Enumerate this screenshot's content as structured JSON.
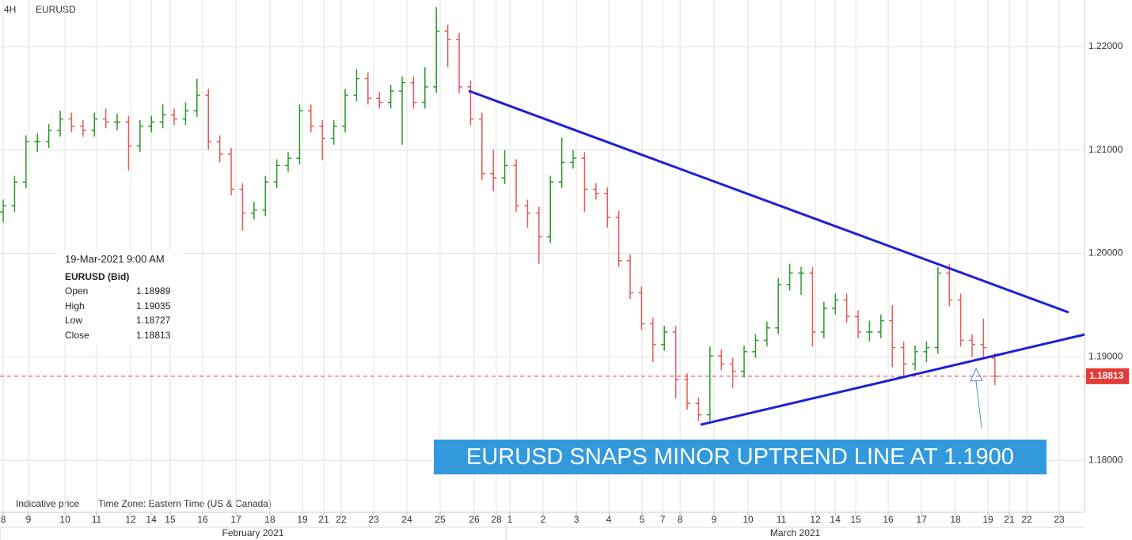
{
  "chart_data": {
    "type": "ohlc",
    "interval": "4H",
    "symbol": "EURUSD",
    "up_color": "#2a9a2a",
    "down_color": "#e35b5b",
    "xlim": [
      -0.28,
      94.86
    ],
    "ylim": [
      1.1752,
      1.2245
    ],
    "yticks": [
      {
        "value": 1.18,
        "label": "1.18000"
      },
      {
        "value": 1.19,
        "label": "1.19000"
      },
      {
        "value": 1.2,
        "label": "1.20000"
      },
      {
        "value": 1.21,
        "label": "1.21000"
      },
      {
        "value": 1.22,
        "label": "1.22000"
      }
    ],
    "xticks": [
      {
        "value": 0,
        "label": "8"
      },
      {
        "value": 2.22,
        "label": "9"
      },
      {
        "value": 5.42,
        "label": "10"
      },
      {
        "value": 8.19,
        "label": "11"
      },
      {
        "value": 11.18,
        "label": "12"
      },
      {
        "value": 12.99,
        "label": "14"
      },
      {
        "value": 14.65,
        "label": "15"
      },
      {
        "value": 17.5,
        "label": "16"
      },
      {
        "value": 20.42,
        "label": "17"
      },
      {
        "value": 23.4,
        "label": "18"
      },
      {
        "value": 26.25,
        "label": "19"
      },
      {
        "value": 28.13,
        "label": "21"
      },
      {
        "value": 29.65,
        "label": "22"
      },
      {
        "value": 32.5,
        "label": "23"
      },
      {
        "value": 35.42,
        "label": "24"
      },
      {
        "value": 38.33,
        "label": "25"
      },
      {
        "value": 41.32,
        "label": "26"
      },
      {
        "value": 43.26,
        "label": "28"
      },
      {
        "value": 44.44,
        "label": "1"
      },
      {
        "value": 47.36,
        "label": "2"
      },
      {
        "value": 50.28,
        "label": "3"
      },
      {
        "value": 53.13,
        "label": "4"
      },
      {
        "value": 56.04,
        "label": "5"
      },
      {
        "value": 57.85,
        "label": "7"
      },
      {
        "value": 59.38,
        "label": "8"
      },
      {
        "value": 62.36,
        "label": "9"
      },
      {
        "value": 65.35,
        "label": "10"
      },
      {
        "value": 68.26,
        "label": "11"
      },
      {
        "value": 71.25,
        "label": "12"
      },
      {
        "value": 72.99,
        "label": "14"
      },
      {
        "value": 74.79,
        "label": "15"
      },
      {
        "value": 77.64,
        "label": "16"
      },
      {
        "value": 80.56,
        "label": "17"
      },
      {
        "value": 83.54,
        "label": "18"
      },
      {
        "value": 86.39,
        "label": "19"
      },
      {
        "value": 88.26,
        "label": "21"
      },
      {
        "value": 89.79,
        "label": "22"
      },
      {
        "value": 92.64,
        "label": "23"
      }
    ],
    "months": [
      {
        "start": -0.28,
        "label": "February 2021"
      },
      {
        "start": 44.1,
        "label": "March 2021"
      }
    ],
    "grid": true,
    "bars": [
      [
        1.204,
        1.2052,
        1.203,
        1.2046
      ],
      [
        1.2046,
        1.2075,
        1.204,
        1.2069
      ],
      [
        1.2069,
        1.2114,
        1.2063,
        1.2108
      ],
      [
        1.2108,
        1.2116,
        1.2098,
        1.2108
      ],
      [
        1.2108,
        1.2125,
        1.2102,
        1.2119
      ],
      [
        1.2119,
        1.2138,
        1.2113,
        1.213
      ],
      [
        1.213,
        1.2136,
        1.2117,
        1.2123
      ],
      [
        1.2123,
        1.2129,
        1.2113,
        1.2119
      ],
      [
        1.2119,
        1.2136,
        1.2113,
        1.213
      ],
      [
        1.213,
        1.214,
        1.2121,
        1.2127
      ],
      [
        1.2127,
        1.2135,
        1.2119,
        1.2127
      ],
      [
        1.2127,
        1.2133,
        1.208,
        1.2104
      ],
      [
        1.2104,
        1.2129,
        1.2098,
        1.2123
      ],
      [
        1.2123,
        1.2133,
        1.2117,
        1.2127
      ],
      [
        1.2127,
        1.2144,
        1.2121,
        1.2134
      ],
      [
        1.2134,
        1.214,
        1.2124,
        1.213
      ],
      [
        1.213,
        1.2146,
        1.2124,
        1.2138
      ],
      [
        1.2138,
        1.2169,
        1.2132,
        1.2153
      ],
      [
        1.2153,
        1.2159,
        1.21,
        1.2108
      ],
      [
        1.2108,
        1.2114,
        1.2088,
        1.2096
      ],
      [
        1.2096,
        1.2102,
        1.2056,
        1.2062
      ],
      [
        1.2062,
        1.2068,
        1.2022,
        1.2039
      ],
      [
        1.2039,
        1.205,
        1.2033,
        1.2042
      ],
      [
        1.2042,
        1.2075,
        1.2036,
        1.2069
      ],
      [
        1.2069,
        1.2091,
        1.2063,
        1.2085
      ],
      [
        1.2085,
        1.2098,
        1.2079,
        1.2092
      ],
      [
        1.2092,
        1.2144,
        1.2086,
        1.2138
      ],
      [
        1.2138,
        1.2144,
        1.2117,
        1.2123
      ],
      [
        1.2123,
        1.2129,
        1.209,
        1.2111
      ],
      [
        1.2111,
        1.2129,
        1.2105,
        1.2123
      ],
      [
        1.2123,
        1.2159,
        1.2117,
        1.2153
      ],
      [
        1.2153,
        1.2178,
        1.2147,
        1.2169
      ],
      [
        1.2169,
        1.2175,
        1.2144,
        1.215
      ],
      [
        1.215,
        1.2156,
        1.214,
        1.2146
      ],
      [
        1.2146,
        1.2163,
        1.214,
        1.2157
      ],
      [
        1.2157,
        1.2171,
        1.2105,
        1.2165
      ],
      [
        1.2165,
        1.2171,
        1.214,
        1.2146
      ],
      [
        1.2146,
        1.218,
        1.214,
        1.2161
      ],
      [
        1.2161,
        1.2238,
        1.2155,
        1.2215
      ],
      [
        1.2215,
        1.2221,
        1.218,
        1.2207
      ],
      [
        1.2207,
        1.2213,
        1.2155,
        1.2161
      ],
      [
        1.2161,
        1.2167,
        1.2124,
        1.213
      ],
      [
        1.213,
        1.2136,
        1.2071,
        1.2077
      ],
      [
        1.2077,
        1.21,
        1.206,
        1.2073
      ],
      [
        1.2073,
        1.21,
        1.2067,
        1.2085
      ],
      [
        1.2085,
        1.2091,
        1.204,
        1.2046
      ],
      [
        1.2046,
        1.2052,
        1.2025,
        1.2039
      ],
      [
        1.2039,
        1.2045,
        1.199,
        1.2016
      ],
      [
        1.2016,
        1.2075,
        1.201,
        1.2069
      ],
      [
        1.2069,
        1.2112,
        1.2063,
        1.2088
      ],
      [
        1.2088,
        1.21,
        1.2082,
        1.2092
      ],
      [
        1.2092,
        1.2098,
        1.204,
        1.2062
      ],
      [
        1.2062,
        1.2068,
        1.2052,
        1.2058
      ],
      [
        1.2058,
        1.2064,
        1.2025,
        1.2035
      ],
      [
        1.2035,
        1.2041,
        1.1987,
        1.1993
      ],
      [
        1.1993,
        1.1999,
        1.1956,
        1.1962
      ],
      [
        1.1962,
        1.1968,
        1.1926,
        1.1932
      ],
      [
        1.1932,
        1.1938,
        1.1895,
        1.1912
      ],
      [
        1.1912,
        1.193,
        1.1906,
        1.1924
      ],
      [
        1.1924,
        1.193,
        1.186,
        1.1878
      ],
      [
        1.1878,
        1.1884,
        1.1849,
        1.1855
      ],
      [
        1.1855,
        1.1861,
        1.1838,
        1.1844
      ],
      [
        1.1844,
        1.191,
        1.1838,
        1.1901
      ],
      [
        1.1901,
        1.1907,
        1.1887,
        1.1893
      ],
      [
        1.1893,
        1.1899,
        1.187,
        1.1886
      ],
      [
        1.1886,
        1.1911,
        1.188,
        1.1905
      ],
      [
        1.1905,
        1.1922,
        1.1899,
        1.1916
      ],
      [
        1.1916,
        1.1934,
        1.191,
        1.1928
      ],
      [
        1.1928,
        1.1976,
        1.1922,
        1.197
      ],
      [
        1.197,
        1.199,
        1.1964,
        1.1981
      ],
      [
        1.1981,
        1.1987,
        1.196,
        1.1981
      ],
      [
        1.1981,
        1.1987,
        1.191,
        1.1924
      ],
      [
        1.1924,
        1.1953,
        1.1918,
        1.1947
      ],
      [
        1.1947,
        1.1961,
        1.1941,
        1.1955
      ],
      [
        1.1955,
        1.1961,
        1.1933,
        1.1939
      ],
      [
        1.1939,
        1.1945,
        1.1918,
        1.1924
      ],
      [
        1.1924,
        1.1935,
        1.1915,
        1.1924
      ],
      [
        1.1924,
        1.1941,
        1.1918,
        1.1935
      ],
      [
        1.1935,
        1.195,
        1.189,
        1.1909
      ],
      [
        1.1909,
        1.1915,
        1.188,
        1.1893
      ],
      [
        1.1893,
        1.1911,
        1.1887,
        1.1905
      ],
      [
        1.1905,
        1.1915,
        1.1895,
        1.1909
      ],
      [
        1.1909,
        1.1987,
        1.1903,
        1.1981
      ],
      [
        1.1981,
        1.199,
        1.1949,
        1.1955
      ],
      [
        1.1955,
        1.1961,
        1.191,
        1.1916
      ],
      [
        1.1916,
        1.1922,
        1.19,
        1.1912
      ],
      [
        1.1912,
        1.1937,
        1.19,
        1.1909
      ],
      [
        1.18989,
        1.19035,
        1.18727,
        1.18813
      ]
    ],
    "last_price": 1.18813,
    "last_price_color": "#e53935",
    "trendlines": [
      {
        "color": "#1f1fd6",
        "points": [
          [
            40.83,
            1.21572
          ],
          [
            93.47,
            1.1943
          ]
        ]
      },
      {
        "color": "#1f1fd6",
        "points": [
          [
            61.18,
            1.18344
          ],
          [
            94.86,
            1.19216
          ]
        ]
      }
    ],
    "annotation": "EURUSD SNAPS MINOR UPTREND LINE AT 1.1900",
    "info": {
      "datetime": "19-Mar-2021 9:00 AM",
      "heading": "EURUSD (Bid)",
      "labels": [
        "Open",
        "High",
        "Low",
        "Close"
      ]
    },
    "footer": {
      "note": "Indicative price",
      "timezone": "Time Zone: Eastern Time (US & Canada)"
    }
  }
}
